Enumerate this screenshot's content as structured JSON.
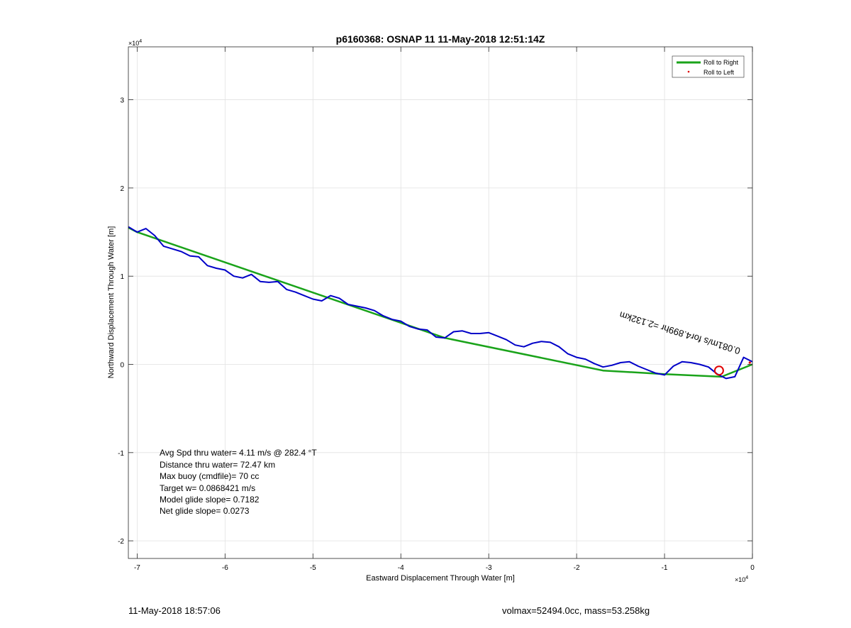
{
  "footer": {
    "left": "11-May-2018 18:57:06",
    "right": "volmax=52494.0cc, mass=53.258kg"
  },
  "colors": {
    "green": "#1aa31a",
    "blue": "#0000c8",
    "red": "#e00000",
    "grid": "#e1e1e1",
    "axis": "#262626"
  },
  "chart_data": {
    "type": "line",
    "title": "p6160368: OSNAP 11 11-May-2018 12:51:14Z",
    "xlabel": "Eastward Displacement Through Water [m]",
    "ylabel": "Northward Displacement Through Water [m]",
    "xlim": [
      -71000,
      0
    ],
    "ylim": [
      -22000,
      36000
    ],
    "x_ticks": [
      -70000,
      -60000,
      -50000,
      -40000,
      -30000,
      -20000,
      -10000,
      0
    ],
    "x_tick_labels": [
      "-7",
      "-6",
      "-5",
      "-4",
      "-3",
      "-2",
      "-1",
      "0"
    ],
    "y_ticks": [
      -20000,
      -10000,
      0,
      10000,
      20000,
      30000
    ],
    "y_tick_labels": [
      "-2",
      "-1",
      "0",
      "1",
      "2",
      "3"
    ],
    "x_exponent": "×10",
    "x_exponent_power": "4",
    "y_exponent": "×10",
    "y_exponent_power": "4",
    "grid": true,
    "legend_position": "top-right",
    "legend": [
      {
        "label": "Roll to Right",
        "style": "line",
        "color": "#1aa31a"
      },
      {
        "label": "Roll to Left",
        "style": "dot",
        "color": "#e00000"
      }
    ],
    "series": [
      {
        "name": "Roll to Right",
        "color": "#1aa31a",
        "x": [
          0,
          -3500,
          -10000,
          -17000,
          -35000,
          -70000,
          -71000
        ],
        "y": [
          0,
          -1400,
          -1100,
          -700,
          3000,
          15000,
          15500
        ]
      },
      {
        "color": "#0000c8",
        "x": [
          -71000,
          -70000,
          -69000,
          -68000,
          -67000,
          -66000,
          -65000,
          -64000,
          -63000,
          -62000,
          -61000,
          -60000,
          -59000,
          -58000,
          -57000,
          -56000,
          -55000,
          -54000,
          -53000,
          -52000,
          -51000,
          -50000,
          -49000,
          -48000,
          -47000,
          -46000,
          -45000,
          -44000,
          -43000,
          -42000,
          -41000,
          -40000,
          -39000,
          -38000,
          -37000,
          -36000,
          -35000,
          -34000,
          -33000,
          -32000,
          -31000,
          -30000,
          -29000,
          -28000,
          -27000,
          -26000,
          -25000,
          -24000,
          -23000,
          -22000,
          -21000,
          -20000,
          -19000,
          -18000,
          -17000,
          -16000,
          -15000,
          -14000,
          -13000,
          -12000,
          -11000,
          -10000,
          -9000,
          -8000,
          -7000,
          -6000,
          -5000,
          -4000,
          -3000,
          -2000,
          -1000,
          0
        ],
        "y": [
          15600,
          15000,
          15400,
          14600,
          13400,
          13100,
          12800,
          12300,
          12200,
          11200,
          10900,
          10700,
          10000,
          9800,
          10200,
          9400,
          9300,
          9400,
          8500,
          8200,
          7800,
          7400,
          7200,
          7800,
          7500,
          6800,
          6600,
          6400,
          6100,
          5500,
          5100,
          4900,
          4300,
          4000,
          3900,
          3100,
          3000,
          3700,
          3800,
          3500,
          3500,
          3600,
          3200,
          2800,
          2200,
          2000,
          2400,
          2600,
          2500,
          2000,
          1200,
          800,
          600,
          100,
          -300,
          -100,
          200,
          300,
          -200,
          -600,
          -1000,
          -1200,
          -200,
          300,
          200,
          0,
          -300,
          -1100,
          -1600,
          -1400,
          800,
          300
        ]
      }
    ],
    "markers": [
      {
        "type": "circle",
        "x": -3800,
        "y": -700,
        "color": "#e00000"
      },
      {
        "type": "dot",
        "x": -300,
        "y": 200,
        "color": "#e00000"
      }
    ],
    "rotated_annotation": {
      "text": "0.081m/s for4.899hr =2.132km",
      "x": -15000,
      "y": 6000,
      "angle": 197
    },
    "text_box": [
      "Avg Spd thru water=  4.11 m/s @ 282.4 °T",
      "Distance thru water= 72.47 km",
      "Max buoy (cmdfile)= 70 cc",
      "Target w= 0.0868421 m/s",
      "Model glide slope= 0.7182",
      "Net glide slope= 0.0273"
    ]
  }
}
